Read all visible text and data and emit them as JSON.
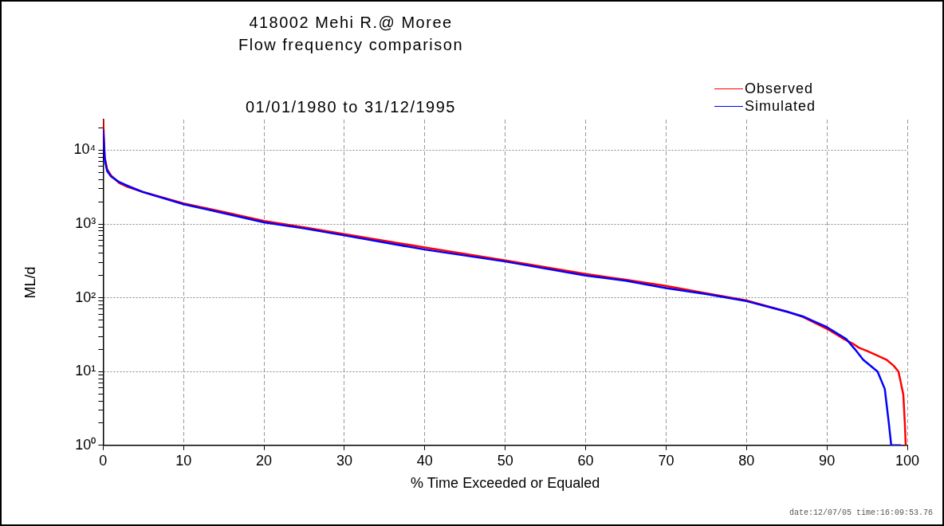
{
  "chart_data": {
    "type": "line",
    "title": "418002 Mehi R.@ Moree\nFlow frequency comparison",
    "subtitle": "01/01/1980 to 31/12/1995",
    "xlabel": "% Time Exceeded or Equaled",
    "ylabel": "ML/d",
    "x": [
      0,
      0.2,
      0.5,
      1,
      2,
      3,
      5,
      10,
      15,
      20,
      25,
      30,
      40,
      50,
      60,
      65,
      70,
      75,
      80,
      85,
      87,
      90,
      92,
      93.2,
      94,
      95,
      96,
      97.4,
      98.3,
      98.9,
      99.2,
      99.5,
      99.7,
      99.8
    ],
    "series": [
      {
        "name": "Observed",
        "color": "#ff0000",
        "values": [
          26000,
          8000,
          5500,
          4500,
          3600,
          3200,
          2700,
          1900,
          1450,
          1100,
          900,
          730,
          480,
          320,
          210,
          175,
          145,
          115,
          92,
          65,
          55,
          38,
          28,
          24,
          21,
          19,
          17,
          14.5,
          12,
          10,
          7,
          4.9,
          1.9,
          1
        ]
      },
      {
        "name": "Simulated",
        "color": "#0000ff",
        "x": [
          0,
          0.2,
          0.5,
          1,
          2,
          3,
          5,
          10,
          15,
          20,
          25,
          30,
          40,
          50,
          60,
          65,
          70,
          75,
          80,
          85,
          87,
          90,
          92.4,
          93.5,
          94.5,
          96.3,
          97.2,
          97.7,
          98,
          99.2
        ],
        "values": [
          19000,
          7500,
          5200,
          4400,
          3700,
          3300,
          2700,
          1850,
          1400,
          1050,
          870,
          700,
          450,
          310,
          200,
          170,
          135,
          112,
          90,
          65,
          56,
          40,
          27.6,
          20,
          14.5,
          10,
          5.8,
          2,
          1,
          1
        ]
      }
    ],
    "xlim": [
      0,
      100
    ],
    "xticks": [
      0,
      10,
      20,
      30,
      40,
      50,
      60,
      70,
      80,
      90,
      100
    ],
    "ylim": [
      1,
      26000
    ],
    "log": "y",
    "yticks": [
      {
        "value": 1,
        "label": "10⁰"
      },
      {
        "value": 2,
        "label": null
      },
      {
        "value": 3,
        "label": null
      },
      {
        "value": 4,
        "label": null
      },
      {
        "value": 5,
        "label": null
      },
      {
        "value": 6,
        "label": null
      },
      {
        "value": 7,
        "label": null
      },
      {
        "value": 8,
        "label": null
      },
      {
        "value": 9,
        "label": null
      },
      {
        "value": 10,
        "label": "10¹"
      },
      {
        "value": 20,
        "label": null
      },
      {
        "value": 30,
        "label": null
      },
      {
        "value": 40,
        "label": null
      },
      {
        "value": 50,
        "label": null
      },
      {
        "value": 60,
        "label": null
      },
      {
        "value": 70,
        "label": null
      },
      {
        "value": 80,
        "label": null
      },
      {
        "value": 90,
        "label": null
      },
      {
        "value": 100,
        "label": "10²"
      },
      {
        "value": 200,
        "label": null
      },
      {
        "value": 300,
        "label": null
      },
      {
        "value": 400,
        "label": null
      },
      {
        "value": 500,
        "label": null
      },
      {
        "value": 600,
        "label": null
      },
      {
        "value": 700,
        "label": null
      },
      {
        "value": 800,
        "label": null
      },
      {
        "value": 900,
        "label": null
      },
      {
        "value": 1000,
        "label": "10³"
      },
      {
        "value": 2000,
        "label": null
      },
      {
        "value": 3000,
        "label": null
      },
      {
        "value": 4000,
        "label": null
      },
      {
        "value": 5000,
        "label": null
      },
      {
        "value": 6000,
        "label": null
      },
      {
        "value": 7000,
        "label": null
      },
      {
        "value": 8000,
        "label": null
      },
      {
        "value": 9000,
        "label": null
      },
      {
        "value": 10000,
        "label": "10⁴"
      },
      {
        "value": 20000,
        "label": null
      }
    ],
    "grid": true,
    "legend": "top right",
    "marker": "none",
    "line_style": "solid",
    "annotations": [
      "date:12/07/05 time:16:09:53.76"
    ]
  }
}
